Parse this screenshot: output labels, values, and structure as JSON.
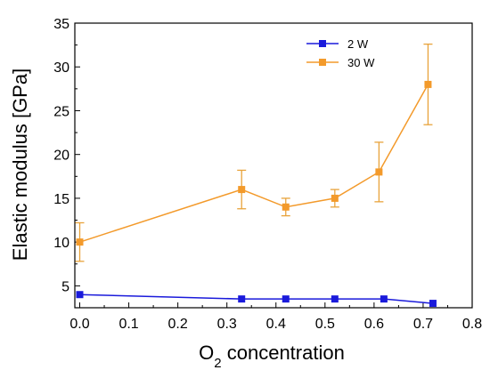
{
  "chart_data": {
    "type": "line",
    "title": "",
    "xlabel": {
      "main": "O",
      "sub": "2",
      "rest": " concentration"
    },
    "ylabel": "Elastic modulus [GPa]",
    "xlim": [
      -0.01,
      0.8
    ],
    "ylim": [
      2.5,
      35
    ],
    "xticks": [
      0.0,
      0.1,
      0.2,
      0.3,
      0.4,
      0.5,
      0.6,
      0.7,
      0.8
    ],
    "xtick_labels": [
      "0.0",
      "0.1",
      "0.2",
      "0.3",
      "0.4",
      "0.5",
      "0.6",
      "0.7",
      "0.8"
    ],
    "yticks": [
      5,
      10,
      15,
      20,
      25,
      30,
      35
    ],
    "ytick_labels": [
      "5",
      "10",
      "15",
      "20",
      "25",
      "30",
      "35"
    ],
    "grid": false,
    "legend_position": "top-right",
    "series": [
      {
        "name": "2 W",
        "color": "#1a1adb",
        "x": [
          0.0,
          0.33,
          0.42,
          0.52,
          0.62,
          0.72
        ],
        "y": [
          4.0,
          3.5,
          3.5,
          3.5,
          3.5,
          3.0
        ]
      },
      {
        "name": "30 W",
        "color": "#f39a2b",
        "errcolor": "#e8a33b",
        "x": [
          0.0,
          0.33,
          0.42,
          0.52,
          0.61,
          0.71
        ],
        "y": [
          10.0,
          16.0,
          14.0,
          15.0,
          18.0,
          28.0
        ],
        "err_low": [
          2.2,
          2.2,
          1.0,
          1.0,
          3.4,
          4.6
        ],
        "err_high": [
          2.2,
          2.2,
          1.0,
          1.0,
          3.4,
          4.6
        ]
      }
    ]
  }
}
